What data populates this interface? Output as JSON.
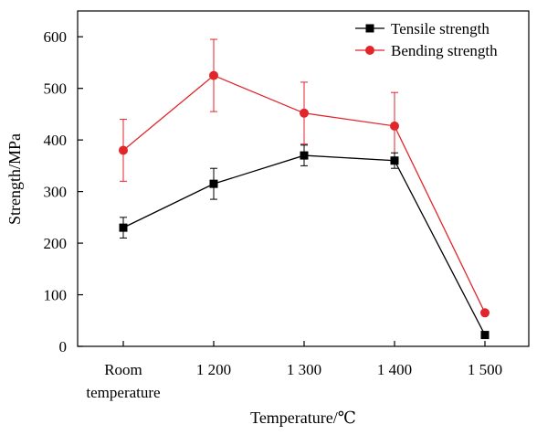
{
  "chart_data": {
    "type": "line",
    "xlabel": "Temperature/℃",
    "ylabel": "Strength/MPa",
    "categories": [
      [
        "Room",
        "temperature"
      ],
      [
        "1 200"
      ],
      [
        "1 300"
      ],
      [
        "1 400"
      ],
      [
        "1 500"
      ]
    ],
    "ylim": [
      0,
      650
    ],
    "yticks": [
      0,
      100,
      200,
      300,
      400,
      500,
      600
    ],
    "legend_position": "top-right",
    "grid": false,
    "series": [
      {
        "name": "Tensile strength",
        "color": "#000000",
        "marker": "square",
        "values": [
          230,
          315,
          370,
          360,
          22
        ],
        "errors": [
          20,
          30,
          20,
          15,
          0
        ]
      },
      {
        "name": "Bending strength",
        "color": "#e0262b",
        "marker": "circle",
        "values": [
          380,
          525,
          452,
          427,
          65
        ],
        "errors": [
          60,
          70,
          60,
          65,
          0
        ]
      }
    ]
  }
}
